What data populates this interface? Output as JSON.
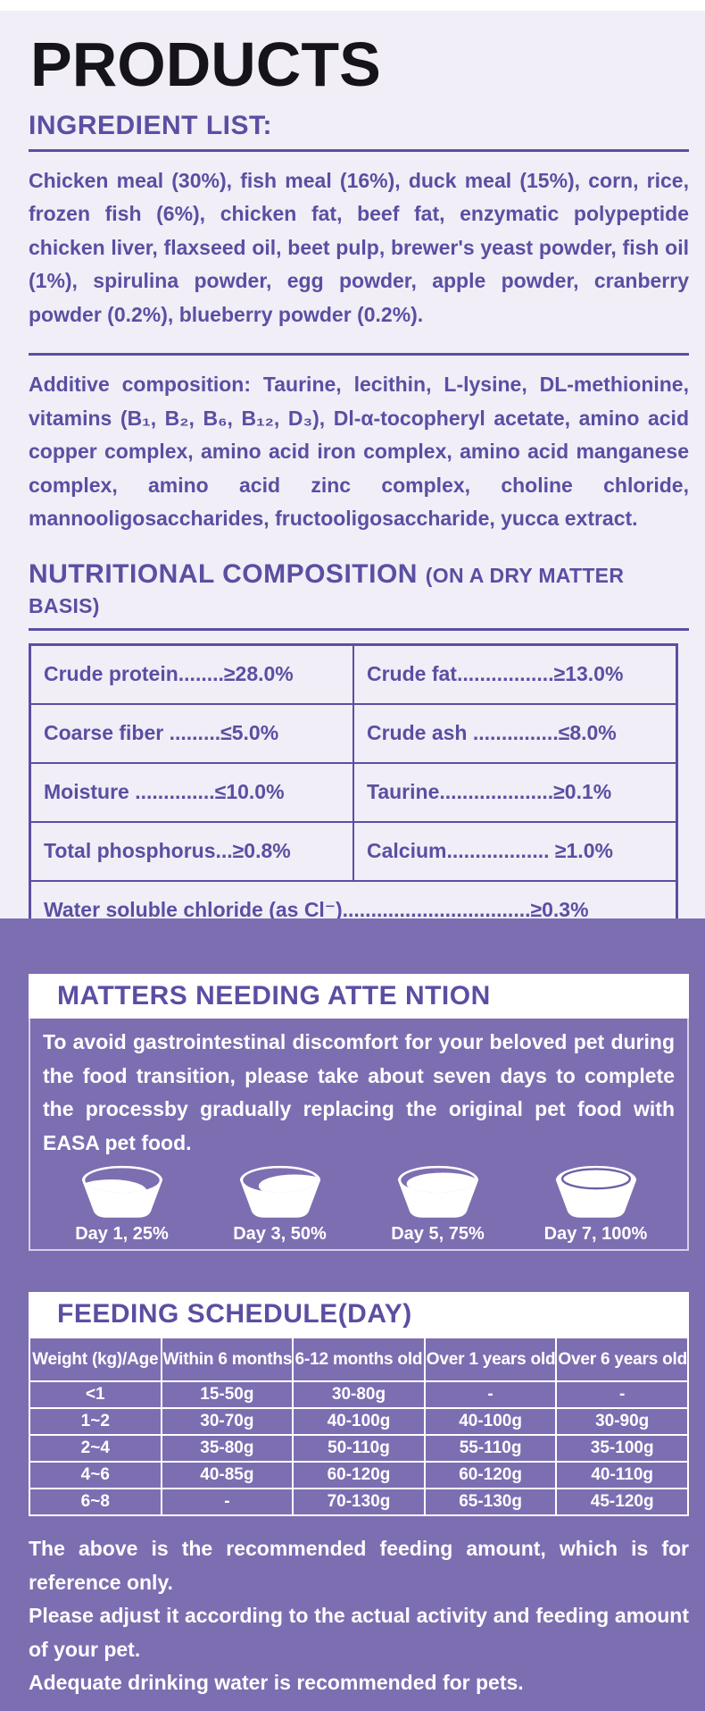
{
  "colors": {
    "bg_light": "#f1eef7",
    "purple_text": "#5a4fa2",
    "purple_bg": "#7d6eb2",
    "rim_line": "#6c5fa8",
    "white": "#ffffff",
    "title_black": "#15141a"
  },
  "header": {
    "title": "PRODUCTS"
  },
  "ingredients": {
    "heading": "INGREDIENT LIST:",
    "paragraph1": "Chicken meal (30%), fish meal (16%), duck meal (15%), corn, rice, frozen fish (6%), chicken fat, beef fat, enzymatic polypeptide chicken liver, flaxseed oil, beet pulp, brewer's yeast powder, fish oil (1%), spirulina powder, egg powder, apple powder, cranberry powder (0.2%), blueberry powder (0.2%).",
    "paragraph2": "Additive composition:  Taurine, lecithin, L-lysine, DL-methionine, vitamins (B₁, B₂, B₆, B₁₂, D₃), Dl-α-tocopheryl acetate, amino acid copper complex, amino acid iron complex, amino acid manganese complex, amino acid zinc complex, choline chloride, mannooligosaccharides, fructooligosaccharide, yucca extract."
  },
  "nutrition": {
    "heading": "NUTRITIONAL COMPOSITION",
    "heading_suffix": "(ON A DRY MATTER BASIS)",
    "rows": [
      [
        "Crude protein........≥28.0%",
        "Crude fat.................≥13.0%"
      ],
      [
        "Coarse fiber .........≤5.0%",
        "Crude ash ...............≤8.0%"
      ],
      [
        "Moisture ..............≤10.0%",
        "Taurine....................≥0.1%"
      ],
      [
        "Total phosphorus...≥0.8%",
        "Calcium.................. ≥1.0%"
      ]
    ],
    "full_row": "Water soluble chloride (as Cl⁻).................................≥0.3%"
  },
  "matters": {
    "heading": "MATTERS NEEDING ATTE NTION",
    "body": "To avoid gastrointestinal discomfort for your beloved pet during the food transition, please take about seven days to complete the processby gradually replacing the original pet food with EASA pet food.",
    "bowls": [
      {
        "label": "Day 1, 25%",
        "fill": 25
      },
      {
        "label": "Day 3, 50%",
        "fill": 50
      },
      {
        "label": "Day 5, 75%",
        "fill": 75
      },
      {
        "label": "Day 7, 100%",
        "fill": 100
      }
    ]
  },
  "feeding": {
    "heading": "FEEDING SCHEDULE(DAY)",
    "columns": [
      "Weight (kg)/Age",
      "Within 6 months",
      "6-12 months old",
      "Over 1 years old",
      "Over 6 years old"
    ],
    "rows": [
      [
        "<1",
        "15-50g",
        "30-80g",
        "-",
        "-"
      ],
      [
        "1~2",
        "30-70g",
        "40-100g",
        "40-100g",
        "30-90g"
      ],
      [
        "2~4",
        "35-80g",
        "50-110g",
        "55-110g",
        "35-100g"
      ],
      [
        "4~6",
        "40-85g",
        "60-120g",
        "60-120g",
        "40-110g"
      ],
      [
        "6~8",
        "-",
        "70-130g",
        "65-130g",
        "45-120g"
      ]
    ]
  },
  "footer": {
    "notes": [
      "The above is the recommended feeding amount, which is for reference only.",
      "Please adjust it according to the actual activity and feeding amount of your pet.",
      "Adequate drinking water is recommended for pets."
    ]
  }
}
